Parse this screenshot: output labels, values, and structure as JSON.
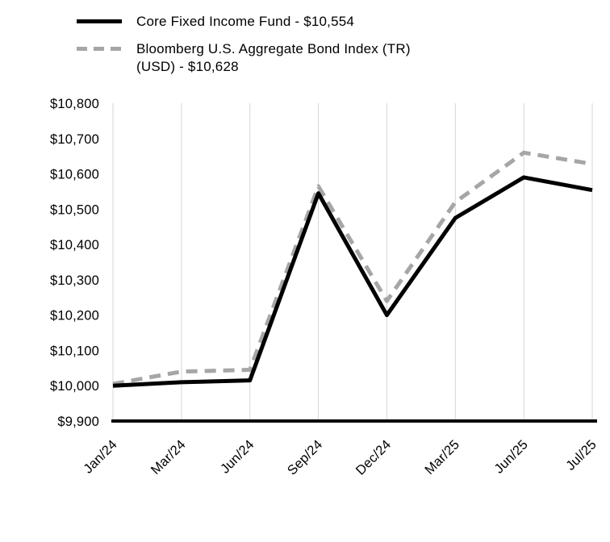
{
  "chart_data": {
    "type": "line",
    "title": "",
    "xlabel": "",
    "ylabel": "",
    "grid": "vertical",
    "legend_position": "top-left",
    "categories": [
      "Jan/24",
      "Mar/24",
      "Jun/24",
      "Sep/24",
      "Dec/24",
      "Mar/25",
      "Jun/25",
      "Jul/25"
    ],
    "series": [
      {
        "name": "Core Fixed Income Fund - $10,554",
        "style": "solid",
        "color": "#000000",
        "values": [
          10000,
          10010,
          10015,
          10545,
          10200,
          10475,
          10590,
          10554
        ]
      },
      {
        "name": "Bloomberg U.S. Aggregate Bond Index (TR) (USD) - $10,628",
        "style": "dashed",
        "color": "#a6a6a6",
        "values": [
          10005,
          10040,
          10045,
          10565,
          10240,
          10520,
          10660,
          10628
        ]
      }
    ],
    "ylim": [
      9900,
      10800
    ],
    "ytick_step": 100,
    "ytick_prefix": "$",
    "gridline_color": "#d6d6d6"
  },
  "legend": {
    "items": [
      {
        "label": "Core Fixed Income Fund - $10,554"
      },
      {
        "label": "Bloomberg U.S. Aggregate Bond Index (TR) (USD) - $10,628"
      }
    ]
  }
}
